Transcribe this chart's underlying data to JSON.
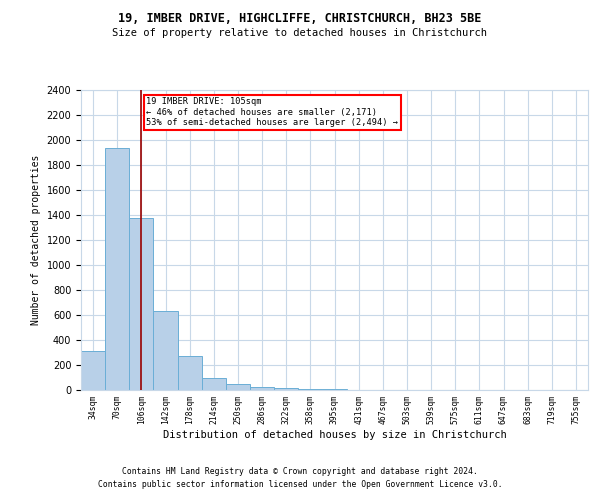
{
  "title1": "19, IMBER DRIVE, HIGHCLIFFE, CHRISTCHURCH, BH23 5BE",
  "title2": "Size of property relative to detached houses in Christchurch",
  "xlabel": "Distribution of detached houses by size in Christchurch",
  "ylabel": "Number of detached properties",
  "bar_color": "#b8d0e8",
  "bar_edge_color": "#6aaed6",
  "categories": [
    "34sqm",
    "70sqm",
    "106sqm",
    "142sqm",
    "178sqm",
    "214sqm",
    "250sqm",
    "286sqm",
    "322sqm",
    "358sqm",
    "395sqm",
    "431sqm",
    "467sqm",
    "503sqm",
    "539sqm",
    "575sqm",
    "611sqm",
    "647sqm",
    "683sqm",
    "719sqm",
    "755sqm"
  ],
  "hist_values": [
    310,
    1940,
    1380,
    630,
    270,
    100,
    50,
    25,
    20,
    5,
    5,
    3,
    2,
    1,
    1,
    1,
    1,
    1,
    0,
    0,
    0
  ],
  "property_line_x": 2.0,
  "annotation_text": "19 IMBER DRIVE: 105sqm\n← 46% of detached houses are smaller (2,171)\n53% of semi-detached houses are larger (2,494) →",
  "annotation_box_color": "white",
  "annotation_box_edge": "red",
  "vline_color": "#990000",
  "ylim": [
    0,
    2400
  ],
  "yticks": [
    0,
    200,
    400,
    600,
    800,
    1000,
    1200,
    1400,
    1600,
    1800,
    2000,
    2200,
    2400
  ],
  "footer1": "Contains HM Land Registry data © Crown copyright and database right 2024.",
  "footer2": "Contains public sector information licensed under the Open Government Licence v3.0.",
  "background_color": "#ffffff",
  "grid_color": "#c8d8e8"
}
